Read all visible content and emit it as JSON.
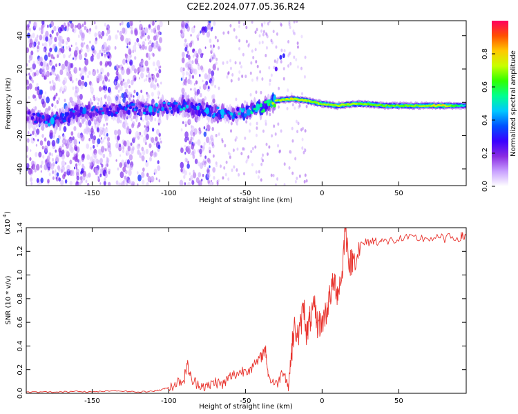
{
  "title": "C2E2.2024.077.05.36.R24",
  "colorbar": {
    "label": "Normalized spectral amplitude",
    "ticks": [
      "0.0",
      "0.2",
      "0.4",
      "0.6",
      "0.8"
    ],
    "tick_values": [
      0.0,
      0.2,
      0.4,
      0.6,
      0.8
    ],
    "range": [
      0,
      1
    ],
    "colormap": [
      "#ffffff",
      "#c8a0ff",
      "#8a2be2",
      "#3a00ff",
      "#0050ff",
      "#00c8ff",
      "#00ff90",
      "#30ff00",
      "#c8ff00",
      "#ffc800",
      "#ff5000",
      "#ff0060"
    ]
  },
  "chart_data": [
    {
      "type": "heatmap",
      "xlabel": "Height of straight line (km)",
      "ylabel": "Frequency (Hz)",
      "xlim": [
        -193,
        94
      ],
      "ylim": [
        -50,
        49
      ],
      "xticks": [
        "-150",
        "-100",
        "-50",
        "0",
        "50"
      ],
      "xtick_values": [
        -150,
        -100,
        -50,
        0,
        50
      ],
      "yticks": [
        "-40",
        "-20",
        "0",
        "20",
        "40"
      ],
      "ytick_values": [
        -40,
        -20,
        0,
        20,
        40
      ],
      "ridge": {
        "x": [
          -193,
          -175,
          -160,
          -145,
          -130,
          -110,
          -100,
          -90,
          -80,
          -70,
          -60,
          -50,
          -40,
          -30,
          -20,
          -10,
          0,
          10,
          20,
          30,
          40,
          50,
          60,
          70,
          80,
          94
        ],
        "y": [
          -8,
          -11,
          -6,
          -5,
          -4,
          -4,
          -3,
          -2,
          -4,
          -6,
          -7,
          -6,
          -3,
          1,
          2,
          1,
          -1,
          -2,
          -1,
          -1,
          -2,
          -2,
          -2,
          -2,
          -2,
          -2
        ],
        "amplitude": [
          0.2,
          0.35,
          0.3,
          0.3,
          0.3,
          0.32,
          0.34,
          0.36,
          0.34,
          0.32,
          0.34,
          0.38,
          0.45,
          0.7,
          0.75,
          0.72,
          0.7,
          0.72,
          0.7,
          0.68,
          0.66,
          0.66,
          0.68,
          0.72,
          0.78,
          0.45
        ]
      },
      "noise_bands_x": [
        [
          -193,
          -138
        ],
        [
          -135,
          -105
        ],
        [
          -92,
          -70
        ]
      ]
    },
    {
      "type": "line",
      "xlabel": "Height of straight line (km)",
      "ylabel": "SNR (10 * v/v)",
      "multiplier_label": "(x10",
      "multiplier_exp": "4",
      "xlim": [
        -193,
        94
      ],
      "ylim": [
        0.0,
        1.4
      ],
      "xticks": [
        "-150",
        "-100",
        "-50",
        "0",
        "50"
      ],
      "xtick_values": [
        -150,
        -100,
        -50,
        0,
        50
      ],
      "yticks": [
        "0.0",
        "0.2",
        "0.4",
        "0.6",
        "0.8",
        "1.0",
        "1.2",
        "1.4"
      ],
      "ytick_values": [
        0.0,
        0.2,
        0.4,
        0.6,
        0.8,
        1.0,
        1.2,
        1.4
      ],
      "series": [
        {
          "color": "#e8302a",
          "x": [
            -193,
            -180,
            -170,
            -160,
            -150,
            -140,
            -130,
            -120,
            -110,
            -105,
            -100,
            -95,
            -90,
            -88,
            -85,
            -80,
            -75,
            -70,
            -65,
            -60,
            -55,
            -50,
            -45,
            -40,
            -37,
            -35,
            -30,
            -25,
            -22,
            -20,
            -18,
            -15,
            -12,
            -10,
            -8,
            -5,
            -3,
            0,
            3,
            5,
            8,
            10,
            13,
            15,
            18,
            20,
            25,
            30,
            35,
            40,
            50,
            60,
            70,
            80,
            90,
            94
          ],
          "y": [
            0.01,
            0.01,
            0.01,
            0.02,
            0.01,
            0.02,
            0.02,
            0.01,
            0.02,
            0.03,
            0.05,
            0.09,
            0.12,
            0.25,
            0.1,
            0.08,
            0.05,
            0.1,
            0.07,
            0.14,
            0.17,
            0.2,
            0.22,
            0.3,
            0.38,
            0.14,
            0.07,
            0.2,
            0.05,
            0.35,
            0.55,
            0.48,
            0.75,
            0.5,
            0.62,
            0.72,
            0.58,
            0.6,
            0.7,
            0.82,
            0.95,
            0.85,
            1.0,
            1.4,
            1.1,
            1.12,
            1.25,
            1.28,
            1.29,
            1.28,
            1.3,
            1.31,
            1.31,
            1.31,
            1.32,
            1.33
          ]
        }
      ]
    }
  ]
}
